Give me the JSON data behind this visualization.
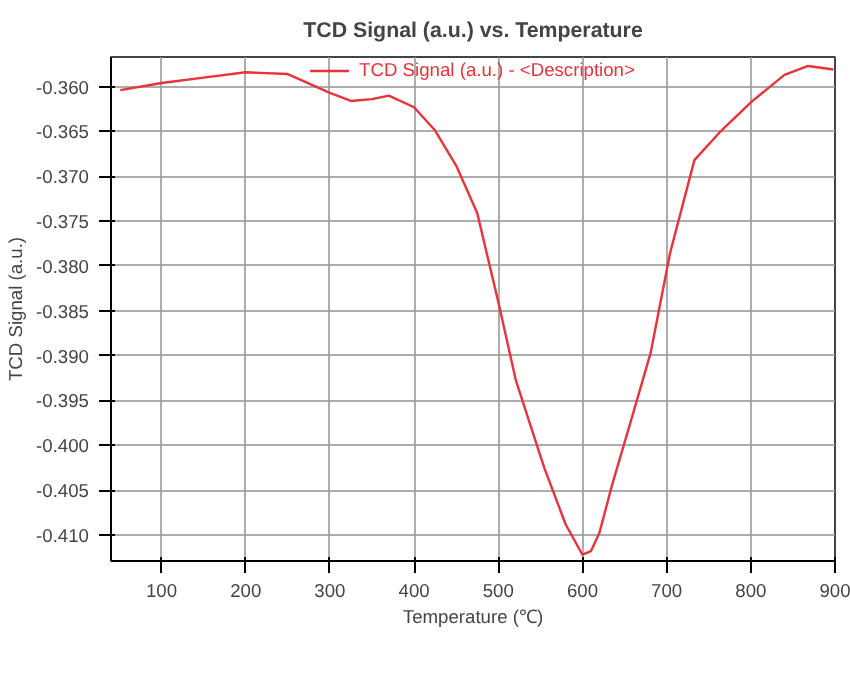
{
  "chart_data": {
    "type": "line",
    "title": "TCD Signal (a.u.) vs. Temperature",
    "xlabel": "Temperature (℃)",
    "ylabel": "TCD Signal (a.u.)",
    "x": [
      51,
      100,
      150,
      200,
      250,
      300,
      325,
      350,
      370,
      400,
      425,
      450,
      475,
      500,
      521,
      555,
      580,
      600,
      610,
      620,
      635,
      660,
      681,
      704,
      733,
      765,
      802,
      840,
      868,
      898
    ],
    "series": [
      {
        "name": "TCD Signal (a.u.) - <Description>",
        "color": "#e8323c",
        "values": [
          -0.3604,
          -0.3596,
          -0.359,
          -0.3584,
          -0.3586,
          -0.3607,
          -0.3616,
          -0.3614,
          -0.361,
          -0.3623,
          -0.3649,
          -0.3688,
          -0.3741,
          -0.384,
          -0.3928,
          -0.4026,
          -0.4088,
          -0.4122,
          -0.4118,
          -0.4098,
          -0.4045,
          -0.3965,
          -0.3897,
          -0.3786,
          -0.3682,
          -0.3649,
          -0.3616,
          -0.3587,
          -0.3577,
          -0.3581
        ]
      }
    ],
    "xlim": [
      40,
      900
    ],
    "ylim": [
      -0.4129,
      -0.3567
    ],
    "xticks": [
      100,
      200,
      300,
      400,
      500,
      600,
      700,
      800,
      900
    ],
    "yticks": [
      {
        "value": -0.36,
        "label": "-0.360"
      },
      {
        "value": -0.365,
        "label": "-0.365"
      },
      {
        "value": -0.37,
        "label": "-0.370"
      },
      {
        "value": -0.375,
        "label": "-0.375"
      },
      {
        "value": -0.38,
        "label": "-0.380"
      },
      {
        "value": -0.385,
        "label": "-0.385"
      },
      {
        "value": -0.39,
        "label": "-0.390"
      },
      {
        "value": -0.395,
        "label": "-0.395"
      },
      {
        "value": -0.4,
        "label": "-0.400"
      },
      {
        "value": -0.405,
        "label": "-0.405"
      },
      {
        "value": -0.41,
        "label": "-0.410"
      }
    ],
    "grid": true,
    "legend": "top",
    "line_style": "solid",
    "marker": "none"
  }
}
